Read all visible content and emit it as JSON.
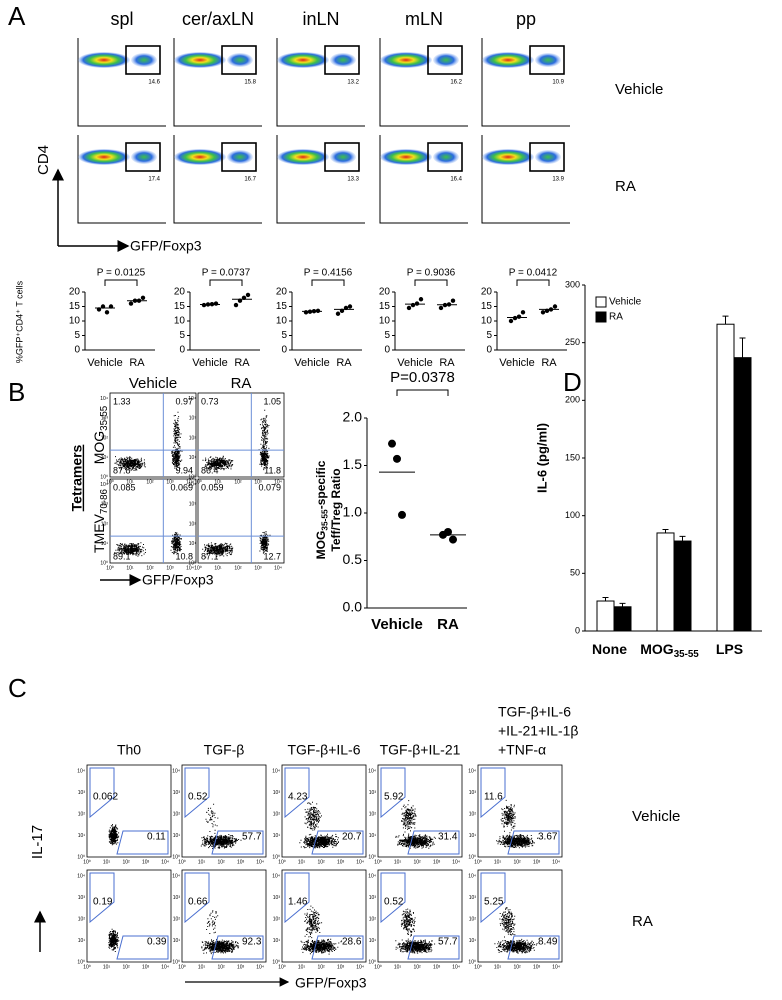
{
  "panel_a": {
    "label": "A",
    "columns": [
      "spl",
      "cer/axLN",
      "inLN",
      "mLN",
      "pp"
    ],
    "rows": [
      "Vehicle",
      "RA"
    ],
    "gate_values": [
      [
        14.6,
        15.8,
        13.2,
        16.2,
        10.9
      ],
      [
        17.4,
        16.7,
        13.3,
        16.4,
        13.9
      ]
    ],
    "y_axis_label": "CD4",
    "x_axis_label": "GFP/Foxp3",
    "dot_plots": {
      "y_label": "%GFP⁺CD4⁺ T cells",
      "categories": [
        "Vehicle",
        "RA"
      ],
      "ylim": [
        0,
        20
      ],
      "yticks": [
        0,
        5,
        10,
        15,
        20
      ],
      "plots": [
        {
          "p_value": "P = 0.0125",
          "values": [
            [
              14,
              15,
              13,
              15
            ],
            [
              16,
              17,
              17,
              18
            ]
          ],
          "means": [
            14.5,
            17
          ]
        },
        {
          "p_value": "P = 0.0737",
          "values": [
            [
              15.5,
              15.7,
              15.8,
              16
            ],
            [
              15.5,
              17,
              18,
              19
            ]
          ],
          "means": [
            15.7,
            17.5
          ]
        },
        {
          "p_value": "P = 0.4156",
          "values": [
            [
              13,
              13.2,
              13.4,
              13.5
            ],
            [
              12.5,
              13.5,
              14.5,
              15
            ]
          ],
          "means": [
            13.3,
            14
          ]
        },
        {
          "p_value": "P = 0.9036",
          "values": [
            [
              14.5,
              15.5,
              16,
              17.5
            ],
            [
              14.5,
              15.5,
              15.7,
              17
            ]
          ],
          "means": [
            15.8,
            15.6
          ]
        },
        {
          "p_value": "P = 0.0412",
          "values": [
            [
              10,
              11,
              11.5,
              13
            ],
            [
              13,
              13.5,
              14,
              15
            ]
          ],
          "means": [
            11.2,
            14
          ]
        }
      ]
    }
  },
  "panel_b": {
    "label": "B",
    "columns": [
      "Vehicle",
      "RA"
    ],
    "stain_label": "Tetramers",
    "rows": [
      [
        "MOG",
        "35-55"
      ],
      [
        "TMEV",
        "70-86"
      ]
    ],
    "quadrant_values": [
      [
        [
          1.33,
          0.97,
          87.8,
          9.94
        ],
        [
          0.73,
          1.05,
          86.4,
          11.8
        ]
      ],
      [
        [
          0.085,
          0.069,
          89.1,
          10.8
        ],
        [
          0.059,
          0.079,
          87.1,
          12.7
        ]
      ]
    ],
    "flow_ticks": [
      "10⁰",
      "10¹",
      "10²",
      "10³",
      "10⁴"
    ],
    "x_axis_label": "GFP/Foxp3",
    "ratio_plot": {
      "title": "P=0.0378",
      "y_label": [
        [
          "MOG",
          "35-55",
          "-specific"
        ],
        [
          "Teff/Treg Ratio"
        ]
      ],
      "categories": [
        "Vehicle",
        "RA"
      ],
      "values": [
        [
          1.73,
          1.57,
          0.98
        ],
        [
          0.77,
          0.8,
          0.72
        ]
      ],
      "means": [
        1.43,
        0.77
      ],
      "ylim": [
        0,
        2
      ],
      "yticks": [
        {
          "value": 0,
          "label": "0.0"
        },
        0.5,
        {
          "value": 1,
          "label": "1.0"
        },
        1.5,
        {
          "value": 2,
          "label": "2.0"
        }
      ]
    }
  },
  "panel_c": {
    "label": "C",
    "columns": [
      [
        "Th0"
      ],
      [
        "TGF-β"
      ],
      [
        "TGF-β+IL-6"
      ],
      [
        "TGF-β+IL-21"
      ],
      [
        "TGF-β+IL-6",
        "+IL-21+IL-1β",
        "+TNF-α"
      ]
    ],
    "rows": [
      "Vehicle",
      "RA"
    ],
    "upper_gate_values": [
      [
        0.062,
        0.52,
        4.23,
        5.92,
        11.6
      ],
      [
        0.19,
        0.66,
        1.46,
        0.52,
        5.25
      ]
    ],
    "lower_gate_values": [
      [
        0.11,
        57.7,
        20.7,
        31.4,
        3.67
      ],
      [
        0.39,
        92.3,
        28.6,
        57.7,
        8.49
      ]
    ],
    "flow_ticks": [
      "10⁰",
      "10¹",
      "10²",
      "10³",
      "10⁴"
    ],
    "y_axis_label": "IL-17",
    "x_axis_label": "GFP/Foxp3"
  },
  "panel_d": {
    "label": "D",
    "type": "bar",
    "y_label": "IL-6 (pg/ml)",
    "categories": [
      [
        "None"
      ],
      [
        "MOG",
        "35-55"
      ],
      [
        "LPS"
      ]
    ],
    "series": [
      {
        "name": "Vehicle",
        "color": "#ffffff",
        "values": [
          26,
          85,
          266
        ],
        "errors": [
          3,
          3,
          7
        ]
      },
      {
        "name": "RA",
        "color": "#000000",
        "values": [
          21,
          78,
          237
        ],
        "errors": [
          3,
          4,
          17
        ]
      }
    ],
    "ylim": [
      0,
      300
    ],
    "yticks": [
      0,
      50,
      100,
      150,
      200,
      250,
      300
    ]
  }
}
